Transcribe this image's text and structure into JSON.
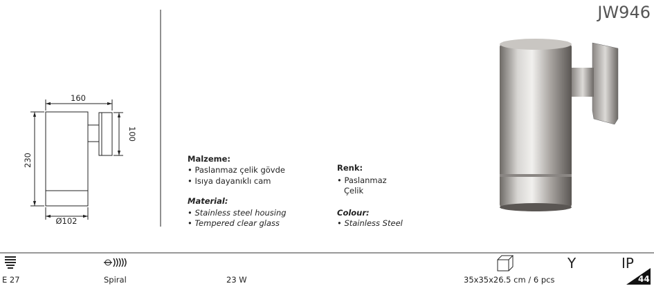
{
  "header": {
    "code": "JW946"
  },
  "drawing": {
    "width": "160",
    "height": "230",
    "bracket": "100",
    "diameter": "Ø102"
  },
  "specs": {
    "malzeme": {
      "title": "Malzeme:",
      "items": [
        "• Paslanmaz çelik gövde",
        "• Isıya dayanıklı cam"
      ]
    },
    "material": {
      "title": "Material:",
      "items": [
        "• Stainless steel housing",
        "• Tempered clear glass"
      ]
    },
    "renk": {
      "title": "Renk:",
      "items": [
        "• Paslanmaz",
        "Çelik"
      ]
    },
    "colour": {
      "title": "Colour:",
      "items": [
        "• Stainless Steel"
      ]
    }
  },
  "footer": {
    "socket": "E 27",
    "bulb": "Spiral",
    "power": "23 W",
    "package": "35x35x26.5 cm / 6 pcs",
    "y": "Y",
    "ip": "IP",
    "ip_rating": "44"
  }
}
